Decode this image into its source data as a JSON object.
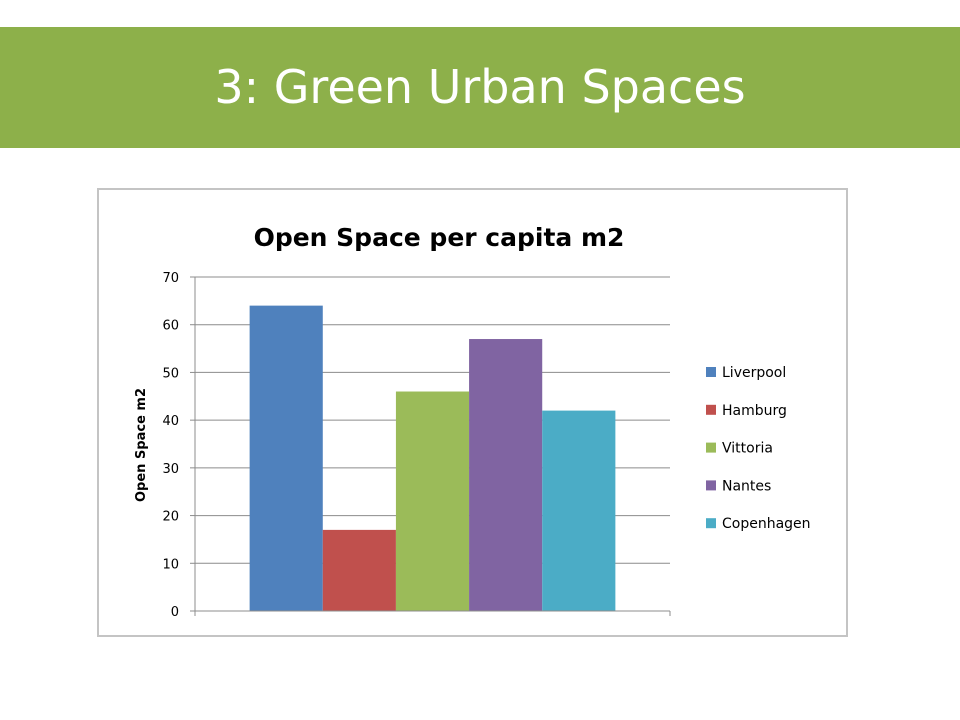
{
  "slide": {
    "title": "3: Green Urban Spaces",
    "banner_color": "#8db04a"
  },
  "chart_data": {
    "type": "bar",
    "title": "Open Space per capita m2",
    "xlabel": "",
    "ylabel": "Open Space m2",
    "ylim": [
      0,
      70
    ],
    "yticks": [
      0,
      10,
      20,
      30,
      40,
      50,
      60,
      70
    ],
    "grid": true,
    "legend_position": "right",
    "series": [
      {
        "name": "Liverpool",
        "value": 64,
        "color": "#4f81bd"
      },
      {
        "name": "Hamburg",
        "value": 17,
        "color": "#c0504d"
      },
      {
        "name": "Vittoria",
        "value": 46,
        "color": "#9bbb59"
      },
      {
        "name": "Nantes",
        "value": 57,
        "color": "#8064a2"
      },
      {
        "name": "Copenhagen",
        "value": 42,
        "color": "#4bacc6"
      }
    ]
  }
}
